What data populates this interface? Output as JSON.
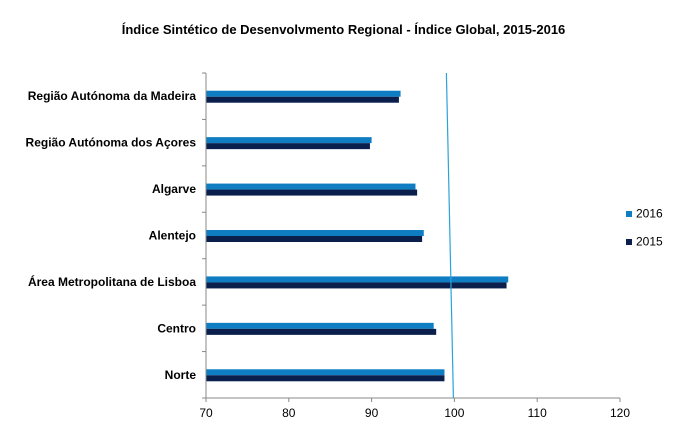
{
  "chart_data": {
    "type": "bar",
    "orientation": "horizontal",
    "title": "Índice Sintético de Desenvolvmento Regional  - Índice Global, 2015-2016",
    "categories": [
      "Região Autónoma da Madeira",
      "Região Autónoma dos Açores",
      "Algarve",
      "Alentejo",
      "Área Metropolitana de Lisboa",
      "Centro",
      "Norte"
    ],
    "series": [
      {
        "name": "2016",
        "color": "#0f7dc2",
        "values": [
          93.5,
          90.0,
          95.3,
          96.3,
          106.5,
          97.5,
          98.8
        ]
      },
      {
        "name": "2015",
        "color": "#0b1f4d",
        "values": [
          93.3,
          89.8,
          95.5,
          96.1,
          106.3,
          97.8,
          98.8
        ]
      }
    ],
    "xlim": [
      70,
      120
    ],
    "x_ticks": [
      "70",
      "80",
      "90",
      "100",
      "110",
      "120"
    ],
    "reference_line": {
      "value": 100,
      "color": "#2aa3d8"
    },
    "grid": false,
    "legend_position": "right"
  }
}
